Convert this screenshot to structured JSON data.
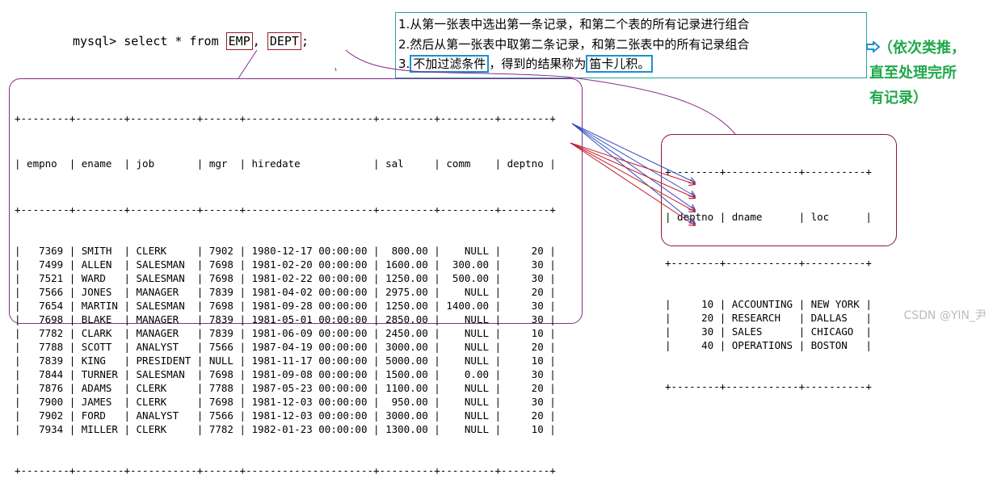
{
  "query": {
    "prefix": "mysql> select * from ",
    "table1": "EMP",
    "comma": ",",
    "table2": "DEPT",
    "suffix": ";"
  },
  "note": {
    "line1": "1.从第一张表中选出第一条记录，和第二个表的所有记录进行组合",
    "line2": "2.然后从第一张表中取第二条记录，和第二张表中的所有记录组合",
    "line3_num": "3.",
    "line3_box1": "不加过滤条件",
    "line3_mid": "，得到的结果称为",
    "line3_box2": "笛卡儿积。",
    "arrow_icon": "hollow-arrow-icon",
    "side_note_line1": "（依次类推，",
    "side_note_line2": "直至处理完所",
    "side_note_line3": "有记录）"
  },
  "emp_table": {
    "separator": "+--------+--------+-----------+------+---------------------+---------+---------+--------+",
    "header": "| empno  | ename  | job       | mgr  | hiredate            | sal     | comm    | deptno |",
    "rows": [
      "|   7369 | SMITH  | CLERK     | 7902 | 1980-12-17 00:00:00 |  800.00 |    NULL |     20 |",
      "|   7499 | ALLEN  | SALESMAN  | 7698 | 1981-02-20 00:00:00 | 1600.00 |  300.00 |     30 |",
      "|   7521 | WARD   | SALESMAN  | 7698 | 1981-02-22 00:00:00 | 1250.00 |  500.00 |     30 |",
      "|   7566 | JONES  | MANAGER   | 7839 | 1981-04-02 00:00:00 | 2975.00 |    NULL |     20 |",
      "|   7654 | MARTIN | SALESMAN  | 7698 | 1981-09-28 00:00:00 | 1250.00 | 1400.00 |     30 |",
      "|   7698 | BLAKE  | MANAGER   | 7839 | 1981-05-01 00:00:00 | 2850.00 |    NULL |     30 |",
      "|   7782 | CLARK  | MANAGER   | 7839 | 1981-06-09 00:00:00 | 2450.00 |    NULL |     10 |",
      "|   7788 | SCOTT  | ANALYST   | 7566 | 1987-04-19 00:00:00 | 3000.00 |    NULL |     20 |",
      "|   7839 | KING   | PRESIDENT | NULL | 1981-11-17 00:00:00 | 5000.00 |    NULL |     10 |",
      "|   7844 | TURNER | SALESMAN  | 7698 | 1981-09-08 00:00:00 | 1500.00 |    0.00 |     30 |",
      "|   7876 | ADAMS  | CLERK     | 7788 | 1987-05-23 00:00:00 | 1100.00 |    NULL |     20 |",
      "|   7900 | JAMES  | CLERK     | 7698 | 1981-12-03 00:00:00 |  950.00 |    NULL |     30 |",
      "|   7902 | FORD   | ANALYST   | 7566 | 1981-12-03 00:00:00 | 3000.00 |    NULL |     20 |",
      "|   7934 | MILLER | CLERK     | 7782 | 1982-01-23 00:00:00 | 1300.00 |    NULL |     10 |"
    ]
  },
  "dept_table": {
    "separator": "+--------+------------+----------+",
    "header": "| deptno | dname      | loc      |",
    "rows": [
      "|     10 | ACCOUNTING | NEW YORK |",
      "|     20 | RESEARCH   | DALLAS   |",
      "|     30 | SALES      | CHICAGO  |",
      "|     40 | OPERATIONS | BOSTON   |"
    ]
  },
  "watermark": "CSDN @YIN_尹",
  "colors": {
    "blue_arrow": "#3050c0",
    "red_arrow": "#c02030",
    "highlight_box": "#1f8fd0",
    "note_border": "#2aa0a0",
    "green_text": "#1fa84a",
    "callout_border": "#8a2a8a"
  }
}
